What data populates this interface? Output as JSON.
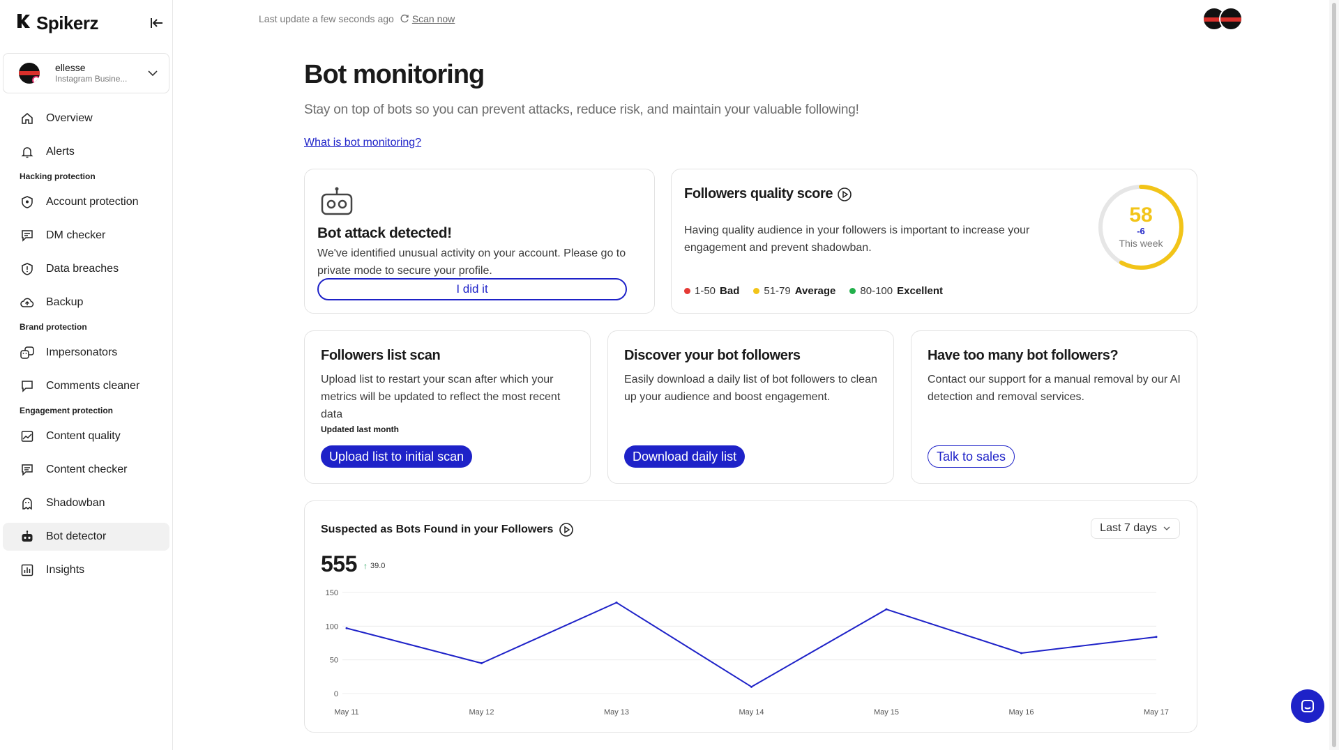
{
  "app": {
    "logo_text": "Spikerz"
  },
  "account": {
    "name": "ellesse",
    "type": "Instagram Busine..."
  },
  "nav": {
    "overview": "Overview",
    "alerts": "Alerts",
    "section_hacking": "Hacking protection",
    "account_protection": "Account protection",
    "dm_checker": "DM checker",
    "data_breaches": "Data breaches",
    "backup": "Backup",
    "section_brand": "Brand protection",
    "impersonators": "Impersonators",
    "comments_cleaner": "Comments cleaner",
    "section_engagement": "Engagement protection",
    "content_quality": "Content quality",
    "content_checker": "Content checker",
    "shadowban": "Shadowban",
    "bot_detector": "Bot detector",
    "insights": "Insights"
  },
  "topbar": {
    "last_update": "Last update a few seconds ago",
    "scan_now": "Scan now"
  },
  "page": {
    "title": "Bot monitoring",
    "subtitle": "Stay on top of bots so you can prevent attacks, reduce risk, and maintain your valuable following!",
    "what_link": "What is bot monitoring?"
  },
  "attack_card": {
    "title": "Bot attack detected!",
    "desc": "We've identified unusual activity on your account. Please go to private mode to secure your profile.",
    "button": "I did it"
  },
  "quality_card": {
    "title": "Followers quality score",
    "desc": "Having quality audience in your followers is important to increase your engagement and prevent shadowban.",
    "score": 58,
    "score_text": "58",
    "delta": "-6",
    "period": "This week",
    "legend": [
      {
        "range": "1-50",
        "label": "Bad",
        "color": "#e53935"
      },
      {
        "range": "51-79",
        "label": "Average",
        "color": "#f2c418"
      },
      {
        "range": "80-100",
        "label": "Excellent",
        "color": "#22b04b"
      }
    ]
  },
  "followers_scan": {
    "title": "Followers list scan",
    "desc": "Upload list to restart your scan after which your metrics will be updated to reflect the most recent data",
    "updated": "Updated last month",
    "button": "Upload list to initial scan"
  },
  "discover": {
    "title": "Discover your bot followers",
    "desc": "Easily download a daily list of bot followers to clean up your audience and boost engagement.",
    "button": "Download daily list"
  },
  "too_many": {
    "title": "Have too many bot followers?",
    "desc": "Contact our support for a manual removal by our AI detection and removal services.",
    "button": "Talk to sales"
  },
  "chart_card": {
    "title": "Suspected as Bots Found in your Followers",
    "range": "Last 7 days",
    "total": "555",
    "change": "39.0"
  },
  "colors": {
    "accent": "#1e22c8"
  },
  "chart_data": {
    "type": "line",
    "categories": [
      "May 11",
      "May 12",
      "May 13",
      "May 14",
      "May 15",
      "May 16",
      "May 17"
    ],
    "series": [
      {
        "values": [
          97,
          45,
          135,
          10,
          125,
          60,
          84
        ]
      }
    ],
    "yticks": [
      0,
      50,
      100,
      150
    ],
    "ylim": [
      0,
      150
    ],
    "grid": true
  }
}
